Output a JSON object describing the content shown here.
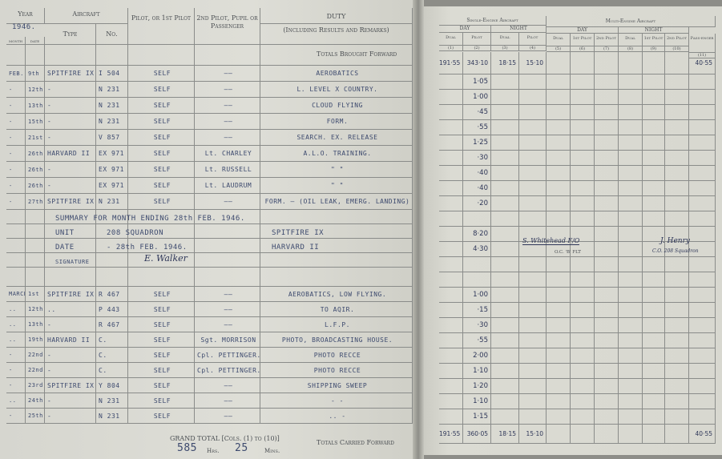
{
  "left_page": {
    "headers": {
      "year": "Year",
      "year_value": "1946.",
      "month": "month",
      "date": "date",
      "aircraft": "Aircraft",
      "type": "Type",
      "no": "No.",
      "pilot": "Pilot, or 1st Pilot",
      "second_pilot": "2nd Pilot, Pupil or Passenger",
      "duty": "DUTY",
      "duty_sub": "(Including Results and Remarks)",
      "totals_bf": "Totals Brought Forward"
    },
    "feb_rows": [
      {
        "month": "FEB.",
        "date": "9th",
        "type": "SPITFIRE IX",
        "no": "I 504",
        "pilot": "SELF",
        "second": "——",
        "duty": "AEROBATICS"
      },
      {
        "month": "-",
        "date": "12th",
        "type": "-",
        "no": "N 231",
        "pilot": "SELF",
        "second": "——",
        "duty": "L. LEVEL X COUNTRY."
      },
      {
        "month": "-",
        "date": "13th",
        "type": "-",
        "no": "N 231",
        "pilot": "SELF",
        "second": "——",
        "duty": "CLOUD FLYING"
      },
      {
        "month": "-",
        "date": "15th",
        "type": "-",
        "no": "N 231",
        "pilot": "SELF",
        "second": "——",
        "duty": "FORM."
      },
      {
        "month": "-",
        "date": "21st",
        "type": "-",
        "no": "V 857",
        "pilot": "SELF",
        "second": "——",
        "duty": "SEARCH. EX. RELEASE"
      },
      {
        "month": "-",
        "date": "26th",
        "type": "HARVARD II",
        "no": "EX 971",
        "pilot": "SELF",
        "second": "Lt. CHARLEY",
        "duty": "A.L.O. TRAINING."
      },
      {
        "month": "-",
        "date": "26th",
        "type": "-",
        "no": "EX 971",
        "pilot": "SELF",
        "second": "Lt. RUSSELL",
        "duty": "\"   \""
      },
      {
        "month": "-",
        "date": "26th",
        "type": "-",
        "no": "EX 971",
        "pilot": "SELF",
        "second": "Lt. LAUDRUM",
        "duty": "\"   \""
      },
      {
        "month": "-",
        "date": "27th",
        "type": "SPITFIRE IX",
        "no": "N 231",
        "pilot": "SELF",
        "second": "——",
        "duty": "FORM. – (OIL LEAK, EMERG. LANDING)"
      }
    ],
    "summary": {
      "line1": "SUMMARY FOR MONTH ENDING 28th FEB. 1946.",
      "unit_label": "UNIT",
      "unit": "208 SQUADRON",
      "date_label": "DATE",
      "date": "- 28th FEB. 1946.",
      "signature_label": "SIGNATURE",
      "signature": "E. Walker",
      "types": [
        "SPITFIRE IX",
        "HARVARD II"
      ]
    },
    "mar_rows": [
      {
        "month": "MARCH",
        "date": "1st",
        "type": "SPITFIRE IX",
        "no": "R 467",
        "pilot": "SELF",
        "second": "——",
        "duty": "AEROBATICS, LOW FLYING."
      },
      {
        "month": "..",
        "date": "12th",
        "type": "..",
        "no": "P 443",
        "pilot": "SELF",
        "second": "——",
        "duty": "TO AQIR."
      },
      {
        "month": "..",
        "date": "13th",
        "type": "-",
        "no": "R 467",
        "pilot": "SELF",
        "second": "——",
        "duty": "L.F.P."
      },
      {
        "month": "..",
        "date": "19th",
        "type": "HARVARD II",
        "no": "C.",
        "pilot": "SELF",
        "second": "Sgt. MORRISON",
        "duty": "PHOTO, BROADCASTING HOUSE."
      },
      {
        "month": "-",
        "date": "22nd",
        "type": "-",
        "no": "C.",
        "pilot": "SELF",
        "second": "Cpl. PETTINGER.",
        "duty": "PHOTO RECCE"
      },
      {
        "month": "-",
        "date": "22nd",
        "type": "-",
        "no": "C.",
        "pilot": "SELF",
        "second": "Cpl. PETTINGER.",
        "duty": "PHOTO RECCE"
      },
      {
        "month": "-",
        "date": "23rd",
        "type": "SPITFIRE IX",
        "no": "Y 804",
        "pilot": "SELF",
        "second": "——",
        "duty": "SHIPPING SWEEP"
      },
      {
        "month": "..",
        "date": "24th",
        "type": "-",
        "no": "N 231",
        "pilot": "SELF",
        "second": "——",
        "duty": "-   -"
      },
      {
        "month": "-",
        "date": "25th",
        "type": "-",
        "no": "N 231",
        "pilot": "SELF",
        "second": "——",
        "duty": "..   -"
      }
    ],
    "grand_total": {
      "label": "GRAND TOTAL [Cols. (1) to (10)]",
      "hrs": "585",
      "hrs_label": "Hrs.",
      "mins": "25",
      "mins_label": "Mins."
    },
    "totals_cf": "Totals Carried Forward"
  },
  "right_page": {
    "headers": {
      "single_engine": "Single-Engine Aircraft",
      "multi_engine": "Multi-Engine Aircraft",
      "day": "DAY",
      "night": "NIGHT",
      "dual": "Dual",
      "pilot": "Pilot",
      "first_pilot": "1st Pilot",
      "second_pilot": "2nd Pilot",
      "passenger": "Pass-enger",
      "col_numbers": [
        "(1)",
        "(2)",
        "(3)",
        "(4)",
        "(5)",
        "(6)",
        "(7)",
        "(8)",
        "(9)",
        "(10)",
        "(11)"
      ]
    },
    "brought_forward": [
      "191·55",
      "343·10",
      "18·15",
      "15·10",
      "",
      "",
      "",
      "",
      "",
      "",
      "40·55"
    ],
    "feb_pilot_times": [
      "1·05",
      "1·00",
      "·45",
      "·55",
      "1·25",
      "·30",
      "·40",
      "·40",
      "·20"
    ],
    "summary_times": [
      "8·20",
      "4·30"
    ],
    "signature_oc": "S. Whitehead F/O",
    "signature_oc_title": "O.C. 'B' FLT",
    "signature_co": "J. Henry",
    "signature_co_title": "C.O. 208 Squadron",
    "mar_pilot_times": [
      "1·00",
      "·15",
      "·30",
      "·55",
      "2·00",
      "1·10",
      "1·20",
      "1·10",
      "1·15"
    ],
    "carried_forward": [
      "191·55",
      "360·05",
      "18·15",
      "15·10",
      "",
      "",
      "",
      "",
      "",
      "",
      "40·55"
    ]
  }
}
